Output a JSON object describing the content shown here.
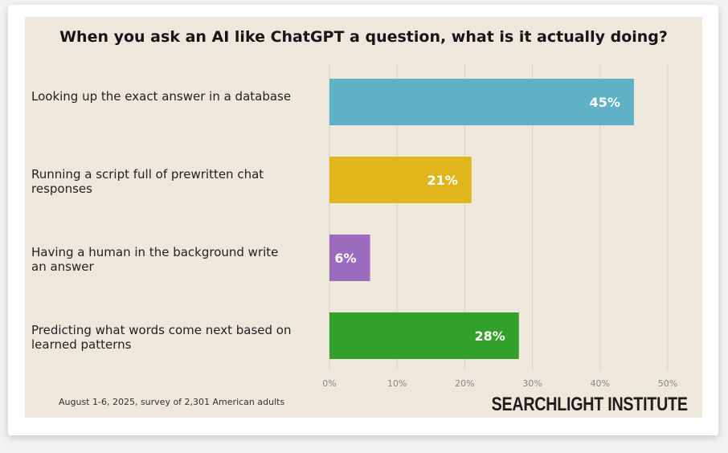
{
  "chart_data": {
    "type": "bar",
    "orientation": "horizontal",
    "title": "When you ask an AI like ChatGPT a question, what is it actually doing?",
    "categories": [
      "Looking up the exact answer in a database",
      "Running a script full of prewritten chat responses",
      "Having a human in the background write an answer",
      "Predicting what words come next based on learned patterns"
    ],
    "values": [
      45,
      21,
      6,
      28
    ],
    "data_labels": [
      "45%",
      "21%",
      "6%",
      "28%"
    ],
    "colors": [
      "#5fb1c6",
      "#e0b61c",
      "#9b6bbd",
      "#34a02c"
    ],
    "xlim": [
      0,
      50
    ],
    "xticks": [
      "0%",
      "10%",
      "20%",
      "30%",
      "40%",
      "50%"
    ],
    "xtick_values": [
      0,
      10,
      20,
      30,
      40,
      50
    ],
    "grid": true,
    "footnote": "August 1-6, 2025, survey of 2,301 American adults",
    "brand": "SEARCHLIGHT INSTITUTE"
  }
}
